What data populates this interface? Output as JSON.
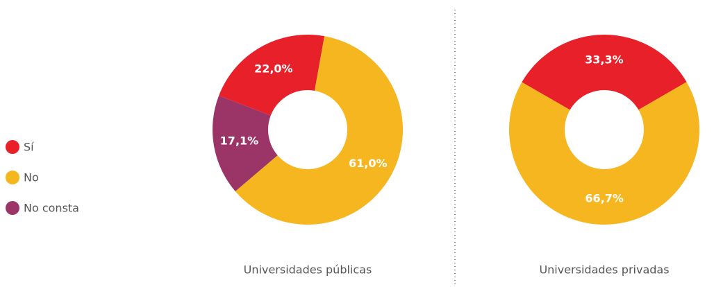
{
  "chart_data": [
    {
      "type": "pie",
      "subtitle": "Universidades públicas",
      "categories": [
        "Sí",
        "No",
        "No consta"
      ],
      "values": [
        22.0,
        61.0,
        17.1
      ],
      "value_labels": [
        "22,0%",
        "61,0%",
        "17,1%"
      ],
      "colors": [
        "#e8202a",
        "#f5b61f",
        "#9c3567"
      ]
    },
    {
      "type": "pie",
      "subtitle": "Universidades privadas",
      "categories": [
        "Sí",
        "No"
      ],
      "values": [
        33.3,
        66.7
      ],
      "value_labels": [
        "33,3%",
        "66,7%"
      ],
      "colors": [
        "#e8202a",
        "#f5b61f"
      ]
    }
  ]
}
